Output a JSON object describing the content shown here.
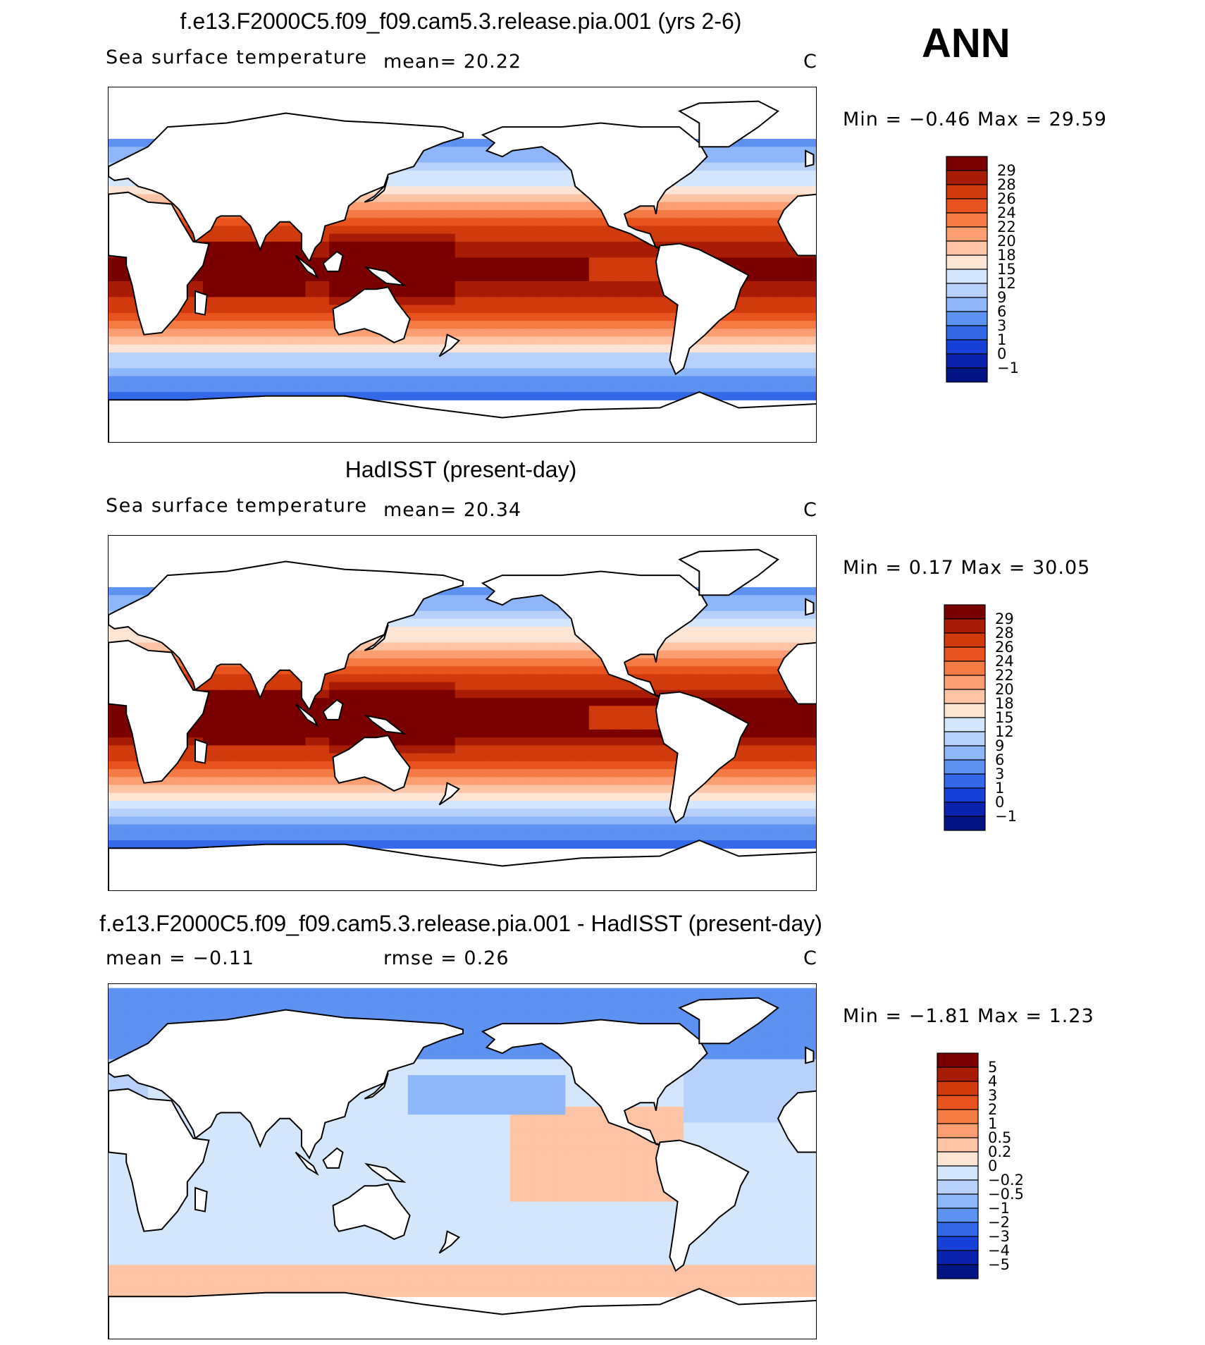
{
  "header": {
    "season": "ANN"
  },
  "panels": [
    {
      "title": "f.e13.F2000C5.f09_f09.cam5.3.release.pia.001 (yrs 2-6)",
      "left_text": "Sea surface temperature",
      "mean_text": "mean=   20.22",
      "units": "C",
      "minmax_text": "Min =   −0.46 Max =   29.59",
      "kind": "model"
    },
    {
      "title": "HadISST (present-day)",
      "left_text": "Sea surface temperature",
      "mean_text": "mean=   20.34",
      "units": "C",
      "minmax_text": "Min =     0.17 Max =   30.05",
      "kind": "obs"
    },
    {
      "title": "f.e13.F2000C5.f09_f09.cam5.3.release.pia.001 - HadISST (present-day)",
      "left_text": "mean =   −0.11",
      "mean_text": "rmse =     0.26",
      "units": "C",
      "minmax_text": "Min =   −1.81  Max =     1.23",
      "kind": "diff"
    }
  ],
  "chart_data": [
    {
      "type": "heatmap",
      "title": "f.e13.F2000C5.f09_f09.cam5.3.release.pia.001 (yrs 2-6)",
      "variable": "Sea surface temperature",
      "units": "C",
      "mean": 20.22,
      "min": -0.46,
      "max": 29.59,
      "colorbar_levels": [
        "29",
        "28",
        "26",
        "24",
        "22",
        "20",
        "18",
        "15",
        "12",
        "9",
        "6",
        "3",
        "1",
        "0",
        "−1"
      ],
      "colors": [
        "#7a0000",
        "#a81c06",
        "#d13a0c",
        "#e9541e",
        "#f57a44",
        "#fb9e72",
        "#fcc3a4",
        "#fde5d5",
        "#d4e6fb",
        "#b7d1fb",
        "#8eb6fa",
        "#5d92f3",
        "#3369e8",
        "#1740d6",
        "#0a22ad",
        "#021383"
      ]
    },
    {
      "type": "heatmap",
      "title": "HadISST (present-day)",
      "variable": "Sea surface temperature",
      "units": "C",
      "mean": 20.34,
      "min": 0.17,
      "max": 30.05,
      "colorbar_levels": [
        "29",
        "28",
        "26",
        "24",
        "22",
        "20",
        "18",
        "15",
        "12",
        "9",
        "6",
        "3",
        "1",
        "0",
        "−1"
      ],
      "colors": [
        "#7a0000",
        "#a81c06",
        "#d13a0c",
        "#e9541e",
        "#f57a44",
        "#fb9e72",
        "#fcc3a4",
        "#fde5d5",
        "#d4e6fb",
        "#b7d1fb",
        "#8eb6fa",
        "#5d92f3",
        "#3369e8",
        "#1740d6",
        "#0a22ad",
        "#021383"
      ]
    },
    {
      "type": "heatmap",
      "title": "f.e13.F2000C5.f09_f09.cam5.3.release.pia.001 - HadISST (present-day)",
      "units": "C",
      "mean": -0.11,
      "rmse": 0.26,
      "min": -1.81,
      "max": 1.23,
      "colorbar_levels": [
        "5",
        "4",
        "3",
        "2",
        "1",
        "0.5",
        "0.2",
        "0",
        "−0.2",
        "−0.5",
        "−1",
        "−2",
        "−3",
        "−4",
        "−5"
      ],
      "colors": [
        "#7a0000",
        "#a81c06",
        "#d13a0c",
        "#e9541e",
        "#f57a44",
        "#fb9e72",
        "#fcc3a4",
        "#fde5d5",
        "#d4e6fb",
        "#b7d1fb",
        "#8eb6fa",
        "#5d92f3",
        "#3369e8",
        "#1740d6",
        "#0a22ad",
        "#021383"
      ]
    }
  ]
}
